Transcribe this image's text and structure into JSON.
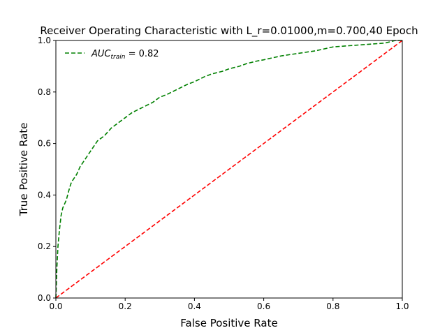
{
  "chart_data": {
    "type": "line",
    "title": "Receiver Operating Characteristic with L_r=0.01000,m=0.700,40 Epoch",
    "xlabel": "False Positive Rate",
    "ylabel": "True Positive Rate",
    "xlim": [
      0.0,
      1.0
    ],
    "ylim": [
      0.0,
      1.0
    ],
    "xticks": [
      "0.0",
      "0.2",
      "0.4",
      "0.6",
      "0.8",
      "1.0"
    ],
    "yticks": [
      "0.0",
      "0.2",
      "0.4",
      "0.6",
      "0.8",
      "1.0"
    ],
    "grid": false,
    "legend": {
      "placement": "top-left",
      "entries": [
        {
          "label_main": "AUC",
          "label_sub": "train",
          "label_value": " = 0.82",
          "color": "#008000",
          "style": "dashed"
        }
      ]
    },
    "series": [
      {
        "name": "AUC_train = 0.82",
        "color": "#008000",
        "style": "dashed",
        "x": [
          0.0,
          0.003,
          0.006,
          0.01,
          0.015,
          0.02,
          0.03,
          0.04,
          0.045,
          0.05,
          0.06,
          0.07,
          0.08,
          0.09,
          0.1,
          0.12,
          0.14,
          0.16,
          0.18,
          0.2,
          0.22,
          0.25,
          0.28,
          0.3,
          0.32,
          0.35,
          0.38,
          0.4,
          0.43,
          0.45,
          0.48,
          0.5,
          0.53,
          0.55,
          0.58,
          0.6,
          0.65,
          0.7,
          0.75,
          0.8,
          0.85,
          0.9,
          0.95,
          0.98,
          1.0
        ],
        "y": [
          0.0,
          0.12,
          0.2,
          0.26,
          0.32,
          0.35,
          0.38,
          0.43,
          0.45,
          0.46,
          0.48,
          0.51,
          0.53,
          0.55,
          0.57,
          0.61,
          0.63,
          0.66,
          0.68,
          0.7,
          0.72,
          0.74,
          0.76,
          0.78,
          0.79,
          0.81,
          0.83,
          0.84,
          0.86,
          0.87,
          0.88,
          0.89,
          0.9,
          0.91,
          0.92,
          0.925,
          0.94,
          0.95,
          0.96,
          0.975,
          0.98,
          0.985,
          0.99,
          1.0,
          1.0
        ]
      },
      {
        "name": "",
        "color": "#ff0000",
        "style": "dashed",
        "x": [
          0.0,
          1.0
        ],
        "y": [
          0.0,
          1.0
        ]
      }
    ]
  }
}
